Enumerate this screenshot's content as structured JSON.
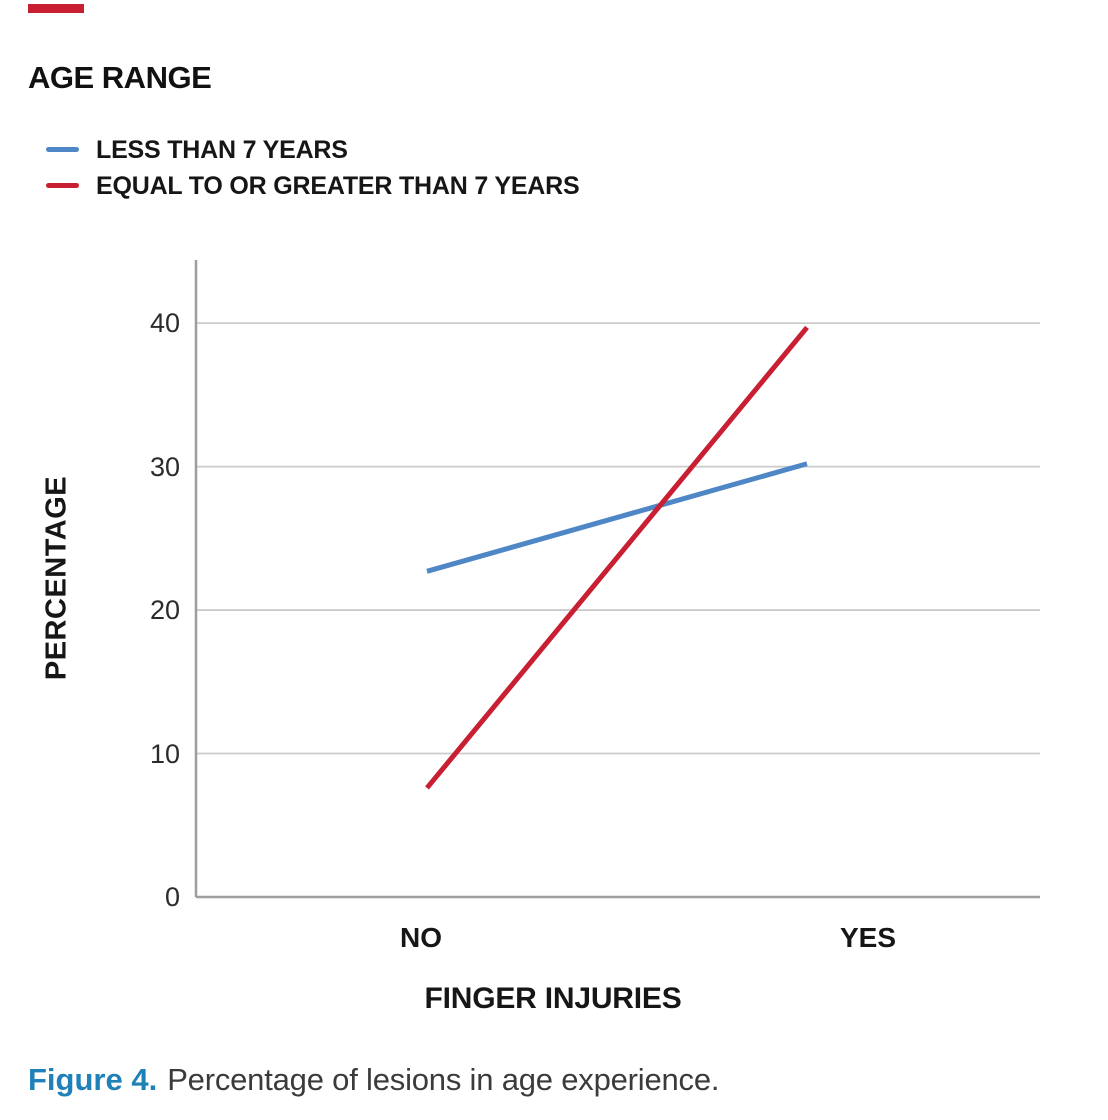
{
  "page": {
    "accent_color": "#C82032",
    "caption": {
      "label": "Figure 4.",
      "label_color": "#1F81B8",
      "text": "Percentage of lesions in age experience."
    }
  },
  "chart_data": {
    "type": "line",
    "legend_title": "AGE RANGE",
    "categories": [
      "NO",
      "YES"
    ],
    "series": [
      {
        "name": "LESS THAN 7 YEARS",
        "color": "#4E86C6",
        "values": [
          22.7,
          30.2
        ]
      },
      {
        "name": "EQUAL TO OR GREATER THAN 7 YEARS",
        "color": "#C82032",
        "values": [
          7.6,
          39.7
        ]
      }
    ],
    "xlabel": "FINGER INJURIES",
    "ylabel": "PERCENTAGE",
    "yticks": [
      0,
      10,
      20,
      30,
      40
    ],
    "ylim": [
      0,
      44.4
    ],
    "grid": "horizontal",
    "legend_position": "top-left",
    "axis_color": "#9E9E9E",
    "gridline_color": "#CBCBCB"
  }
}
